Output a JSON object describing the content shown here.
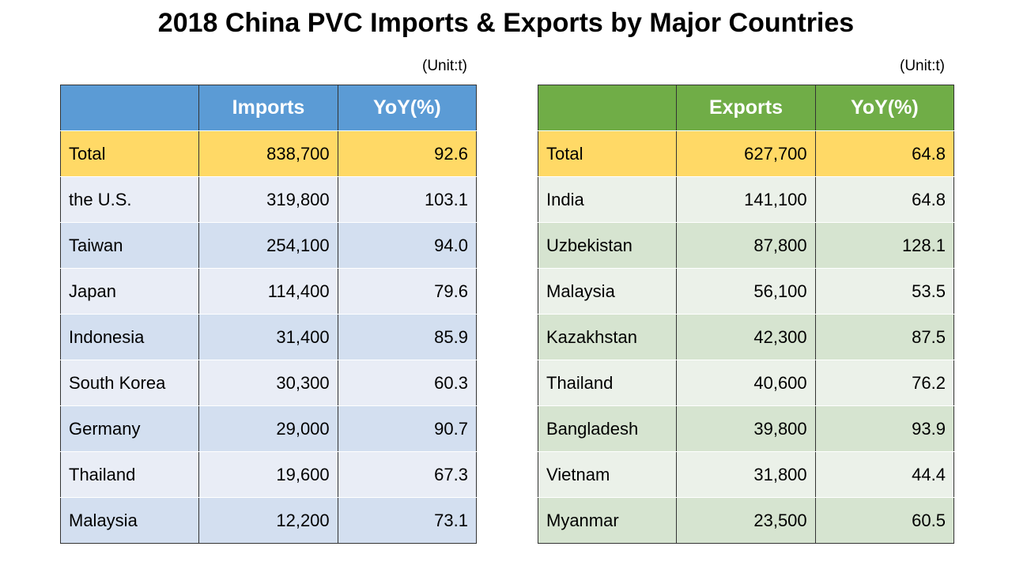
{
  "title": "2018 China PVC Imports & Exports by Major Countries",
  "tables": [
    {
      "unit": "(Unit:t)",
      "header": [
        "Imports",
        "YoY(%)"
      ],
      "rows": [
        [
          "Total",
          "838,700",
          "92.6"
        ],
        [
          "the U.S.",
          "319,800",
          "103.1"
        ],
        [
          "Taiwan",
          "254,100",
          "94.0"
        ],
        [
          "Japan",
          "114,400",
          "79.6"
        ],
        [
          "Indonesia",
          "31,400",
          "85.9"
        ],
        [
          "South Korea",
          "30,300",
          "60.3"
        ],
        [
          "Germany",
          "29,000",
          "90.7"
        ],
        [
          "Thailand",
          "19,600",
          "67.3"
        ],
        [
          "Malaysia",
          "12,200",
          "73.1"
        ]
      ]
    },
    {
      "unit": "(Unit:t)",
      "header": [
        "Exports",
        "YoY(%)"
      ],
      "rows": [
        [
          "Total",
          "627,700",
          "64.8"
        ],
        [
          "India",
          "141,100",
          "64.8"
        ],
        [
          "Uzbekistan",
          "87,800",
          "128.1"
        ],
        [
          "Malaysia",
          "56,100",
          "53.5"
        ],
        [
          "Kazakhstan",
          "42,300",
          "87.5"
        ],
        [
          "Thailand",
          "40,600",
          "76.2"
        ],
        [
          "Bangladesh",
          "39,800",
          "93.9"
        ],
        [
          "Vietnam",
          "31,800",
          "44.4"
        ],
        [
          "Myanmar",
          "23,500",
          "60.5"
        ]
      ]
    }
  ]
}
